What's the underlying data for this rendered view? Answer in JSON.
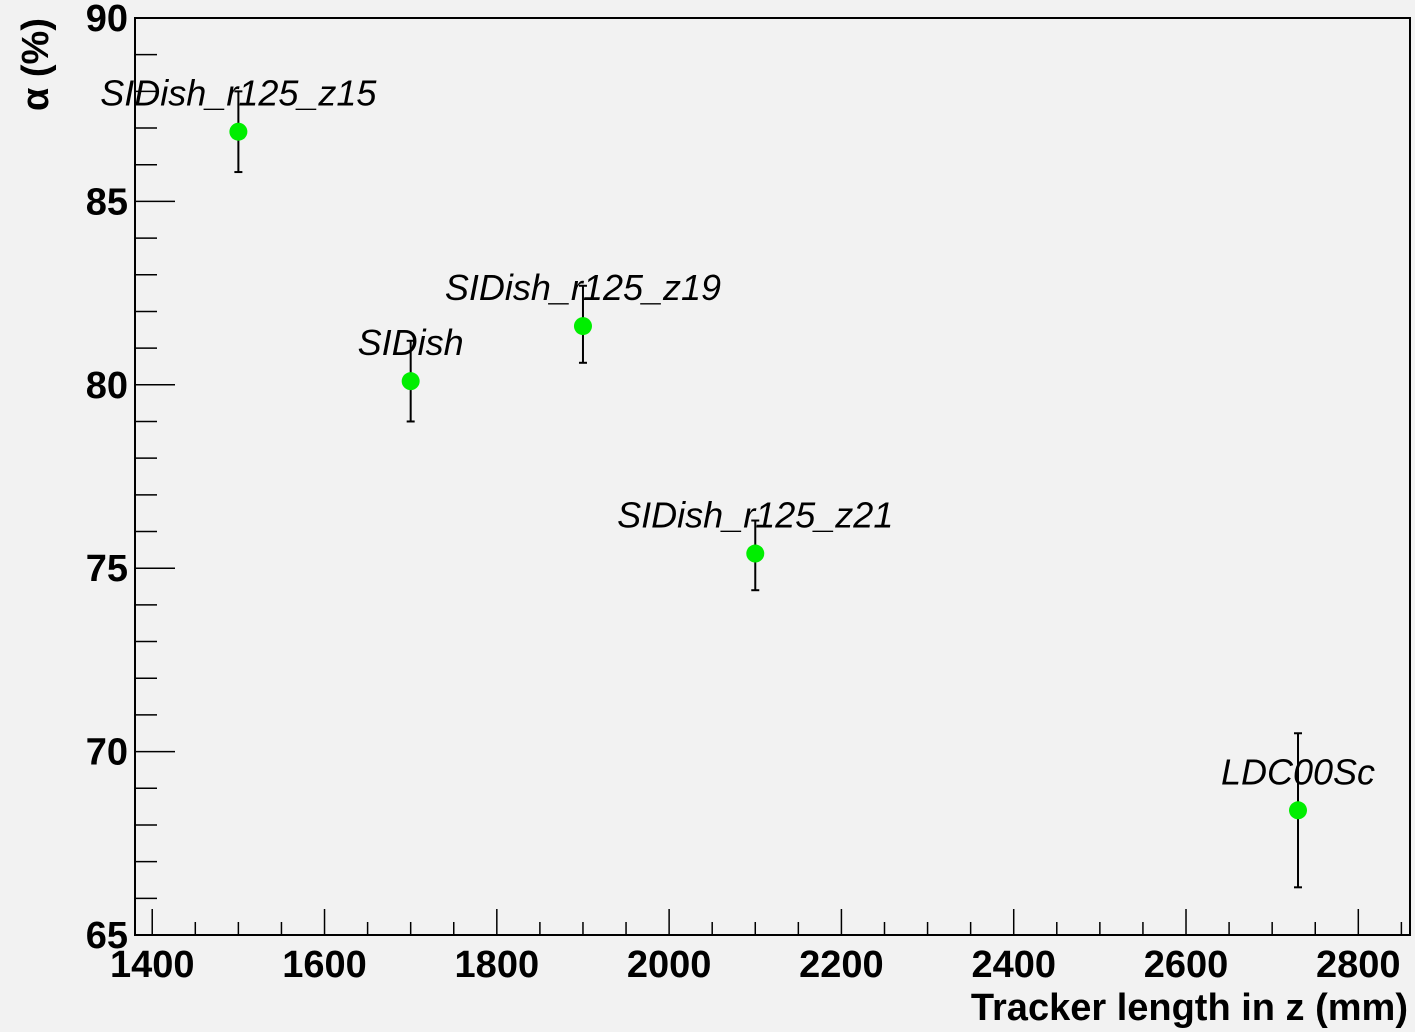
{
  "chart_data": {
    "type": "scatter",
    "title": "",
    "xlabel": "Tracker length in z (mm)",
    "ylabel": "α (%)",
    "xlim": [
      1380,
      2860
    ],
    "ylim": [
      65,
      90
    ],
    "x_ticks": [
      1400,
      1600,
      1800,
      2000,
      2200,
      2400,
      2600,
      2800
    ],
    "y_ticks": [
      65,
      70,
      75,
      80,
      85,
      90
    ],
    "grid": false,
    "legend": "none",
    "marker_color": "#00ee00",
    "error_bar_color": "#000000",
    "points": [
      {
        "label": "SIDish_r125_z15",
        "x": 1500,
        "y": 86.9,
        "err_low": 1.1,
        "err_high": 1.1
      },
      {
        "label": "SIDish",
        "x": 1700,
        "y": 80.1,
        "err_low": 1.1,
        "err_high": 1.1
      },
      {
        "label": "SIDish_r125_z19",
        "x": 1900,
        "y": 81.6,
        "err_low": 1.0,
        "err_high": 1.1
      },
      {
        "label": "SIDish_r125_z21",
        "x": 2100,
        "y": 75.4,
        "err_low": 1.0,
        "err_high": 0.9
      },
      {
        "label": "LDC00Sc",
        "x": 2730,
        "y": 68.4,
        "err_low": 2.1,
        "err_high": 2.1
      }
    ]
  }
}
